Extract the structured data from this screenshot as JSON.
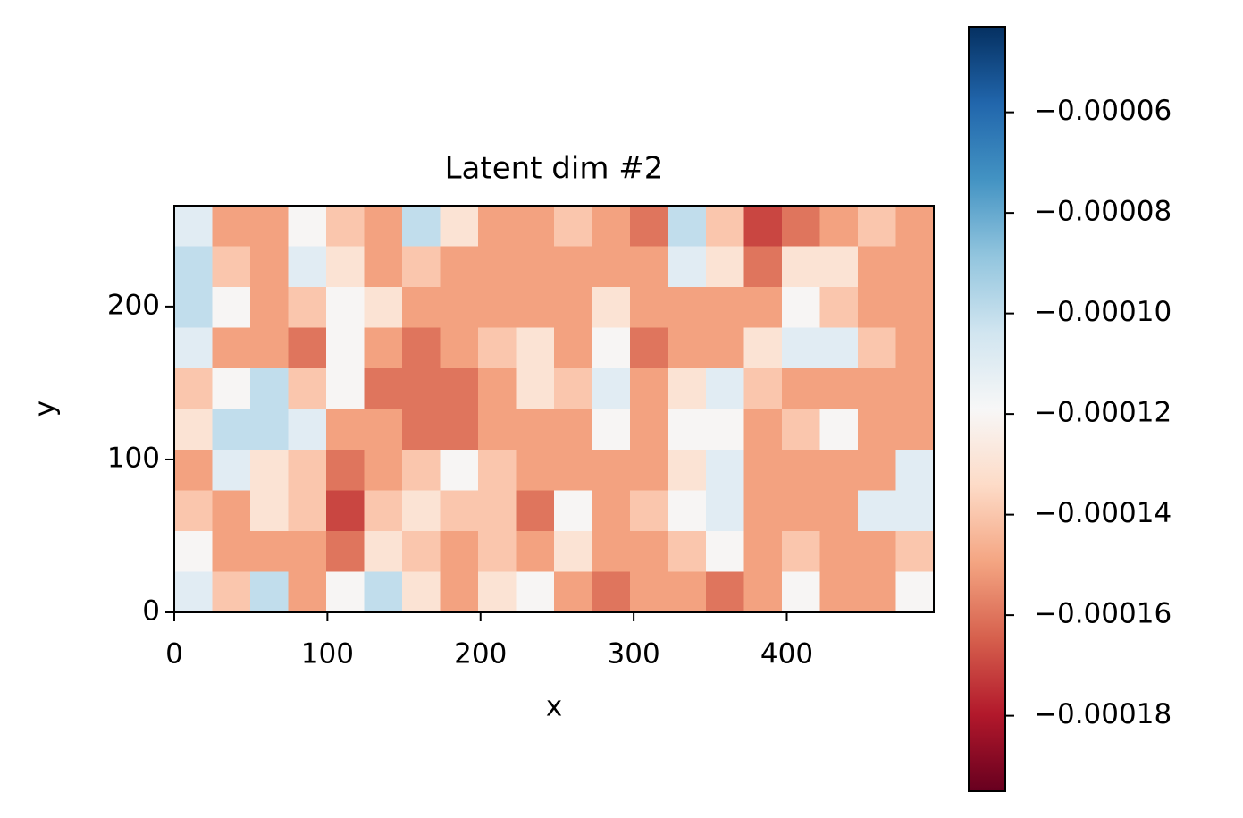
{
  "chart_data": {
    "type": "heatmap",
    "title": "Latent dim #2",
    "x_label": "x",
    "y_label": "y",
    "xlim": [
      0,
      496
    ],
    "ylim": [
      0,
      266
    ],
    "xticks": [
      0,
      100,
      200,
      300,
      400
    ],
    "yticks": [
      0,
      100,
      200
    ],
    "clim": [
      -0.000195,
      -4.3e-05
    ],
    "cticks": [
      {
        "value": -6e-05,
        "label": "−0.00006"
      },
      {
        "value": -8e-05,
        "label": "−0.00008"
      },
      {
        "value": -0.0001,
        "label": "−0.00010"
      },
      {
        "value": -0.00012,
        "label": "−0.00012"
      },
      {
        "value": -0.00014,
        "label": "−0.00014"
      },
      {
        "value": -0.00016,
        "label": "−0.00016"
      },
      {
        "value": -0.00018,
        "label": "−0.00018"
      }
    ],
    "colormap": [
      "#67001f",
      "#b2182b",
      "#d6604d",
      "#f4a582",
      "#fddbc7",
      "#f7f7f7",
      "#d1e5f0",
      "#92c5de",
      "#4393c3",
      "#2166ac",
      "#053061"
    ],
    "values": [
      [
        -0.00011,
        -0.00015,
        -0.00015,
        -0.00012,
        -0.00014,
        -0.00015,
        -0.0001,
        -0.00013,
        -0.00015,
        -0.00015,
        -0.00014,
        -0.00015,
        -0.00016,
        -0.0001,
        -0.00014,
        -0.00017,
        -0.00016,
        -0.00015,
        -0.00014,
        -0.00015
      ],
      [
        -0.0001,
        -0.00014,
        -0.00015,
        -0.00011,
        -0.00013,
        -0.00015,
        -0.00014,
        -0.00015,
        -0.00015,
        -0.00015,
        -0.00015,
        -0.00015,
        -0.00015,
        -0.00011,
        -0.00013,
        -0.00016,
        -0.00013,
        -0.00013,
        -0.00015,
        -0.00015
      ],
      [
        -0.0001,
        -0.00012,
        -0.00015,
        -0.00014,
        -0.00012,
        -0.00013,
        -0.00015,
        -0.00015,
        -0.00015,
        -0.00015,
        -0.00015,
        -0.00013,
        -0.00015,
        -0.00015,
        -0.00015,
        -0.00015,
        -0.00012,
        -0.00014,
        -0.00015,
        -0.00015
      ],
      [
        -0.00011,
        -0.00015,
        -0.00015,
        -0.00016,
        -0.00012,
        -0.00015,
        -0.00016,
        -0.00015,
        -0.00014,
        -0.00013,
        -0.00015,
        -0.00012,
        -0.00016,
        -0.00015,
        -0.00015,
        -0.00013,
        -0.00011,
        -0.00011,
        -0.00014,
        -0.00015
      ],
      [
        -0.00014,
        -0.00012,
        -0.0001,
        -0.00014,
        -0.00012,
        -0.00016,
        -0.00016,
        -0.00016,
        -0.00015,
        -0.00013,
        -0.00014,
        -0.00011,
        -0.00015,
        -0.00013,
        -0.00011,
        -0.00014,
        -0.00015,
        -0.00015,
        -0.00015,
        -0.00015
      ],
      [
        -0.00013,
        -0.0001,
        -0.0001,
        -0.00011,
        -0.00015,
        -0.00015,
        -0.00016,
        -0.00016,
        -0.00015,
        -0.00015,
        -0.00015,
        -0.00012,
        -0.00015,
        -0.00012,
        -0.00012,
        -0.00015,
        -0.00014,
        -0.00012,
        -0.00015,
        -0.00015
      ],
      [
        -0.00015,
        -0.00011,
        -0.00013,
        -0.00014,
        -0.00016,
        -0.00015,
        -0.00014,
        -0.00012,
        -0.00014,
        -0.00015,
        -0.00015,
        -0.00015,
        -0.00015,
        -0.00013,
        -0.00011,
        -0.00015,
        -0.00015,
        -0.00015,
        -0.00015,
        -0.00011
      ],
      [
        -0.00014,
        -0.00015,
        -0.00013,
        -0.00014,
        -0.00017,
        -0.00014,
        -0.00013,
        -0.00014,
        -0.00014,
        -0.00016,
        -0.00012,
        -0.00015,
        -0.00014,
        -0.00012,
        -0.00011,
        -0.00015,
        -0.00015,
        -0.00015,
        -0.00011,
        -0.00011
      ],
      [
        -0.00012,
        -0.00015,
        -0.00015,
        -0.00015,
        -0.00016,
        -0.00013,
        -0.00014,
        -0.00015,
        -0.00014,
        -0.00015,
        -0.00013,
        -0.00015,
        -0.00015,
        -0.00014,
        -0.00012,
        -0.00015,
        -0.00014,
        -0.00015,
        -0.00015,
        -0.00014
      ],
      [
        -0.00011,
        -0.00014,
        -0.0001,
        -0.00015,
        -0.00012,
        -0.0001,
        -0.00013,
        -0.00015,
        -0.00013,
        -0.00012,
        -0.00015,
        -0.00016,
        -0.00015,
        -0.00015,
        -0.00016,
        -0.00015,
        -0.00012,
        -0.00015,
        -0.00015,
        -0.00012
      ]
    ]
  }
}
